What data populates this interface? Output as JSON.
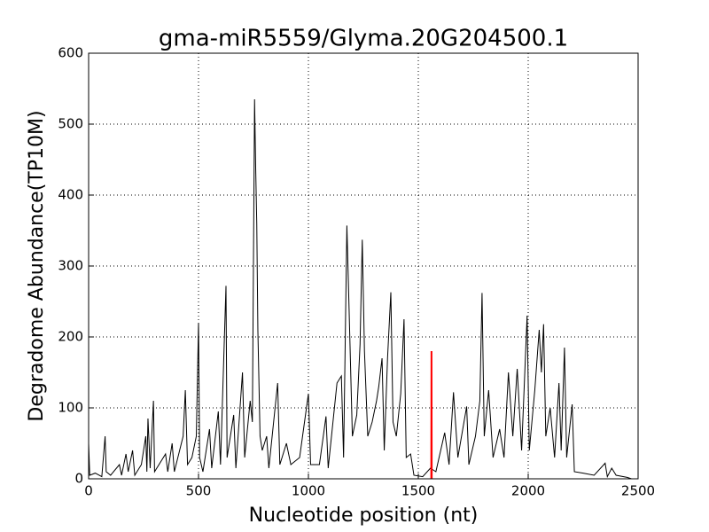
{
  "chart_data": {
    "type": "line",
    "title": "gma-miR5559/Glyma.20G204500.1",
    "x_label": "Nucleotide position (nt)",
    "y_label": "Degradome Abundance(TP10M)",
    "xlim": [
      0,
      2500
    ],
    "xticks": [
      0,
      500,
      1000,
      1500,
      2000,
      2500
    ],
    "ylim": [
      0,
      600
    ],
    "yticks": [
      0,
      100,
      200,
      300,
      400,
      500,
      600
    ],
    "grid": true,
    "series": [
      {
        "color": "#000000",
        "x": [
          0,
          5,
          30,
          60,
          75,
          80,
          100,
          140,
          150,
          170,
          180,
          200,
          210,
          240,
          260,
          265,
          270,
          280,
          295,
          300,
          350,
          360,
          380,
          390,
          430,
          440,
          450,
          470,
          490,
          500,
          505,
          520,
          550,
          560,
          590,
          600,
          625,
          630,
          660,
          670,
          700,
          710,
          735,
          745,
          755,
          760,
          765,
          770,
          780,
          790,
          810,
          820,
          860,
          870,
          900,
          920,
          960,
          1000,
          1010,
          1050,
          1080,
          1090,
          1130,
          1150,
          1160,
          1175,
          1185,
          1200,
          1220,
          1235,
          1245,
          1255,
          1270,
          1290,
          1310,
          1320,
          1335,
          1345,
          1360,
          1375,
          1385,
          1400,
          1420,
          1435,
          1445,
          1465,
          1480,
          1520,
          1555,
          1580,
          1620,
          1640,
          1660,
          1680,
          1720,
          1730,
          1760,
          1780,
          1790,
          1800,
          1820,
          1840,
          1870,
          1890,
          1910,
          1930,
          1950,
          1970,
          1995,
          2005,
          2030,
          2050,
          2060,
          2070,
          2080,
          2100,
          2120,
          2140,
          2150,
          2165,
          2175,
          2200,
          2210,
          2250,
          2300,
          2350,
          2360,
          2380,
          2400,
          2450,
          2470
        ],
        "values": [
          50,
          5,
          8,
          3,
          60,
          10,
          5,
          20,
          5,
          35,
          10,
          40,
          5,
          20,
          60,
          10,
          85,
          15,
          110,
          10,
          35,
          10,
          50,
          10,
          60,
          125,
          20,
          30,
          60,
          220,
          30,
          10,
          70,
          15,
          95,
          20,
          272,
          30,
          90,
          15,
          150,
          30,
          110,
          80,
          535,
          440,
          360,
          210,
          60,
          40,
          60,
          15,
          135,
          20,
          50,
          20,
          30,
          120,
          20,
          20,
          88,
          15,
          135,
          145,
          30,
          357,
          240,
          60,
          90,
          190,
          337,
          180,
          60,
          80,
          110,
          130,
          170,
          40,
          170,
          263,
          80,
          60,
          120,
          225,
          30,
          35,
          5,
          3,
          15,
          10,
          65,
          20,
          122,
          30,
          102,
          20,
          60,
          110,
          262,
          60,
          125,
          30,
          70,
          30,
          150,
          60,
          155,
          40,
          230,
          40,
          125,
          210,
          150,
          218,
          60,
          100,
          30,
          135,
          40,
          185,
          30,
          105,
          10,
          8,
          5,
          22,
          3,
          15,
          5,
          2,
          0
        ]
      },
      {
        "color": "#ff0000",
        "x": [
          1559,
          1560,
          1561
        ],
        "values": [
          0,
          180,
          0
        ]
      }
    ]
  }
}
